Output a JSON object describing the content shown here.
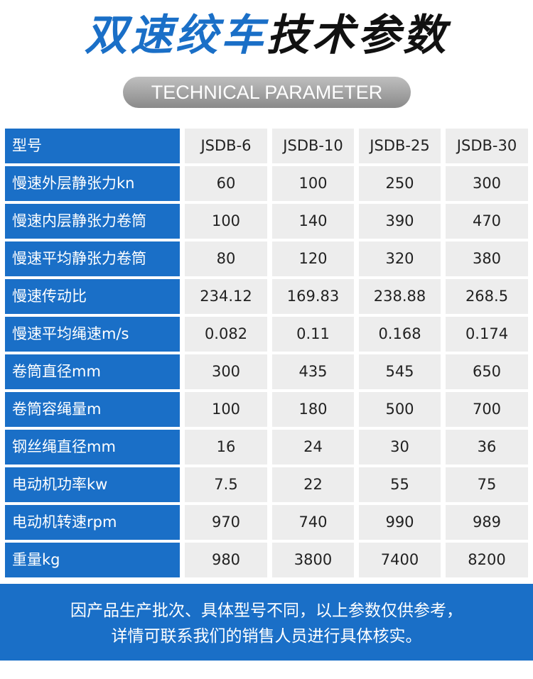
{
  "header": {
    "title_parts": [
      "双速绞车",
      "技术参数"
    ],
    "subtitle": "TECHNICAL PARAMETER"
  },
  "table": {
    "columns": [
      "型号",
      "JSDB-6",
      "JSDB-10",
      "JSDB-25",
      "JSDB-30"
    ],
    "rows": [
      [
        "慢速外层静张力kn",
        "60",
        "100",
        "250",
        "300"
      ],
      [
        "慢速内层静张力卷筒",
        "100",
        "140",
        "390",
        "470"
      ],
      [
        "慢速平均静张力卷筒",
        "80",
        "120",
        "320",
        "380"
      ],
      [
        "慢速传动比",
        "234.12",
        "169.83",
        "238.88",
        "268.5"
      ],
      [
        "慢速平均绳速m/s",
        "0.082",
        "0.11",
        "0.168",
        "0.174"
      ],
      [
        "卷筒直径mm",
        "300",
        "435",
        "545",
        "650"
      ],
      [
        "卷筒容绳量m",
        "100",
        "180",
        "500",
        "700"
      ],
      [
        "钢丝绳直径mm",
        "16",
        "24",
        "30",
        "36"
      ],
      [
        "电动机功率kw",
        "7.5",
        "22",
        "55",
        "75"
      ],
      [
        "电动机转速rpm",
        "970",
        "740",
        "990",
        "989"
      ],
      [
        "重量kg",
        "980",
        "3800",
        "7400",
        "8200"
      ]
    ]
  },
  "footer": {
    "lines": [
      "因产品生产批次、具体型号不同，以上参数仅供参考，",
      "详情可联系我们的销售人员进行具体核实。"
    ]
  }
}
